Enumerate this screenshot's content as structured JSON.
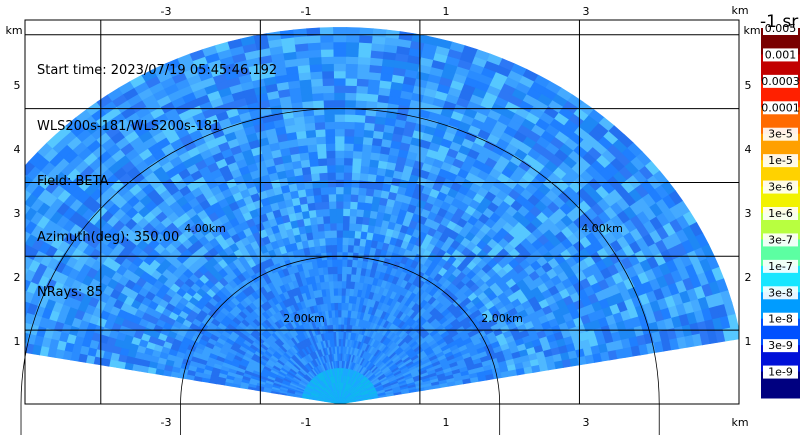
{
  "info": {
    "start_time": "Start time: 2023/07/19 05:45:46.192",
    "radar": "WLS200s-181/WLS200s-181",
    "field": "Field: BETA",
    "azimuth": "Azimuth(deg): 350.00",
    "nrays": "NRays: 85"
  },
  "axes": {
    "x_ticks": [
      "-3",
      "-1",
      "1",
      "3"
    ],
    "y_ticks": [
      "1",
      "2",
      "3",
      "4",
      "5"
    ],
    "unit": "km",
    "x_range": [
      -3.95,
      5.0
    ],
    "y_range": [
      0,
      5.2
    ],
    "x_tick_values": [
      -3,
      -1,
      1,
      3
    ],
    "y_tick_values": [
      1,
      2,
      3,
      4,
      5
    ]
  },
  "range_rings": [
    {
      "label": "2.00km",
      "radius_km": 2
    },
    {
      "label": "4.00km",
      "radius_km": 4
    }
  ],
  "sector": {
    "max_range_km": 5.1,
    "az_start_deg": -80,
    "az_end_deg": 80
  },
  "colorbar": {
    "units": "-1 sr",
    "labels": [
      "0.005",
      "0.001",
      "0.0003",
      "0.0001",
      "3e-5",
      "1e-5",
      "3e-6",
      "1e-6",
      "3e-7",
      "1e-7",
      "3e-8",
      "1e-8",
      "3e-9",
      "1e-9"
    ],
    "colors": [
      "#7a0000",
      "#c20000",
      "#ff2000",
      "#ff6a00",
      "#ffa000",
      "#ffd200",
      "#f2f200",
      "#b8ff40",
      "#5cffa2",
      "#18e6ff",
      "#009cff",
      "#0050ff",
      "#0010d8",
      "#000080"
    ]
  }
}
